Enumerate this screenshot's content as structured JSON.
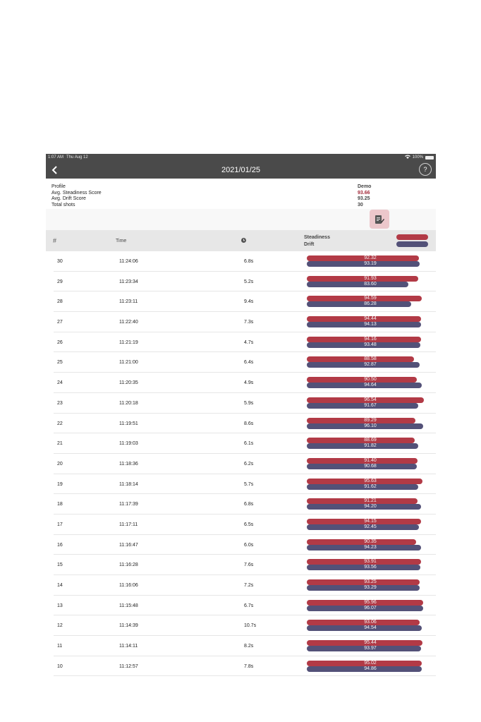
{
  "status_bar": {
    "time": "1:07 AM",
    "date": "Thu Aug 12",
    "battery": "100%"
  },
  "nav": {
    "title": "2021/01/25",
    "help_label": "?"
  },
  "summary": {
    "labels": [
      "Profile",
      "Avg. Steadiness Score",
      "Avg. Drift Score",
      "Total shots"
    ],
    "profile": "Demo",
    "avg_steadiness": "93.66",
    "avg_drift": "93.25",
    "total_shots": "30"
  },
  "table": {
    "headers": {
      "num": "#",
      "time": "Time",
      "steadiness": "Steadiness",
      "drift": "Drift"
    },
    "rows": [
      {
        "num": "30",
        "time": "11:24:06",
        "duration": "6.8s",
        "steadiness": "92.32",
        "drift": "93.19"
      },
      {
        "num": "29",
        "time": "11:23:34",
        "duration": "5.2s",
        "steadiness": "91.93",
        "drift": "83.60"
      },
      {
        "num": "28",
        "time": "11:23:11",
        "duration": "9.4s",
        "steadiness": "94.59",
        "drift": "86.28"
      },
      {
        "num": "27",
        "time": "11:22:40",
        "duration": "7.3s",
        "steadiness": "94.44",
        "drift": "94.13"
      },
      {
        "num": "26",
        "time": "11:21:19",
        "duration": "4.7s",
        "steadiness": "94.16",
        "drift": "93.48"
      },
      {
        "num": "25",
        "time": "11:21:00",
        "duration": "6.4s",
        "steadiness": "88.58",
        "drift": "92.87"
      },
      {
        "num": "24",
        "time": "11:20:35",
        "duration": "4.9s",
        "steadiness": "90.50",
        "drift": "94.64"
      },
      {
        "num": "23",
        "time": "11:20:18",
        "duration": "5.9s",
        "steadiness": "96.54",
        "drift": "91.67"
      },
      {
        "num": "22",
        "time": "11:19:51",
        "duration": "8.6s",
        "steadiness": "89.29",
        "drift": "96.10"
      },
      {
        "num": "21",
        "time": "11:19:03",
        "duration": "6.1s",
        "steadiness": "88.69",
        "drift": "91.82"
      },
      {
        "num": "20",
        "time": "11:18:36",
        "duration": "6.2s",
        "steadiness": "91.40",
        "drift": "90.68"
      },
      {
        "num": "19",
        "time": "11:18:14",
        "duration": "5.7s",
        "steadiness": "95.63",
        "drift": "91.62"
      },
      {
        "num": "18",
        "time": "11:17:39",
        "duration": "6.8s",
        "steadiness": "91.21",
        "drift": "94.20"
      },
      {
        "num": "17",
        "time": "11:17:11",
        "duration": "6.5s",
        "steadiness": "94.15",
        "drift": "92.45"
      },
      {
        "num": "16",
        "time": "11:16:47",
        "duration": "6.0s",
        "steadiness": "90.35",
        "drift": "94.23"
      },
      {
        "num": "15",
        "time": "11:16:28",
        "duration": "7.6s",
        "steadiness": "93.91",
        "drift": "93.56"
      },
      {
        "num": "14",
        "time": "11:16:06",
        "duration": "7.2s",
        "steadiness": "93.25",
        "drift": "93.29"
      },
      {
        "num": "13",
        "time": "11:15:48",
        "duration": "6.7s",
        "steadiness": "95.96",
        "drift": "96.07"
      },
      {
        "num": "12",
        "time": "11:14:39",
        "duration": "10.7s",
        "steadiness": "93.06",
        "drift": "94.54"
      },
      {
        "num": "11",
        "time": "11:14:11",
        "duration": "8.2s",
        "steadiness": "95.44",
        "drift": "93.97"
      },
      {
        "num": "10",
        "time": "11:12:57",
        "duration": "7.8s",
        "steadiness": "95.02",
        "drift": "94.86"
      }
    ]
  },
  "colors": {
    "steadiness": "#b23a46",
    "drift": "#535178",
    "header_bg": "#4a4a4a",
    "accent_red": "#a32a3a"
  },
  "icons": {
    "back": "chevron-left-icon",
    "help": "help-icon",
    "report": "report-edit-icon",
    "duration": "clock-icon",
    "wifi": "wifi-icon",
    "battery": "battery-icon"
  }
}
